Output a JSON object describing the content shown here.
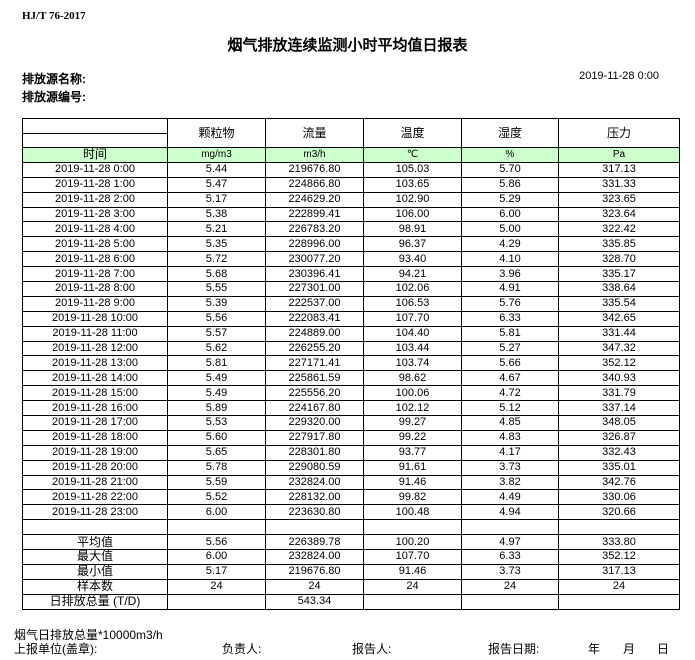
{
  "header": {
    "standard": "HJ/T  76-2017",
    "title": "烟气排放连续监测小时平均值日报表",
    "source_name_label": "排放源名称:",
    "source_no_label": "排放源编号:",
    "report_datetime": "2019-11-28 0:00"
  },
  "table": {
    "columns": [
      "颗粒物",
      "流量",
      "温度",
      "湿度",
      "压力"
    ],
    "time_label": "时间",
    "units": [
      "mg/m3",
      "m3/h",
      "℃",
      "%",
      "Pa"
    ],
    "rows": [
      [
        "2019-11-28 0:00",
        "5.44",
        "219676.80",
        "105.03",
        "5.70",
        "317.13"
      ],
      [
        "2019-11-28 1:00",
        "5.47",
        "224866.80",
        "103.65",
        "5.86",
        "331.33"
      ],
      [
        "2019-11-28 2:00",
        "5.17",
        "224629.20",
        "102.90",
        "5.29",
        "323.65"
      ],
      [
        "2019-11-28 3:00",
        "5.38",
        "222899.41",
        "106.00",
        "6.00",
        "323.64"
      ],
      [
        "2019-11-28 4:00",
        "5.21",
        "226783.20",
        "98.91",
        "5.00",
        "322.42"
      ],
      [
        "2019-11-28 5:00",
        "5.35",
        "228996.00",
        "96.37",
        "4.29",
        "335.85"
      ],
      [
        "2019-11-28 6:00",
        "5.72",
        "230077.20",
        "93.40",
        "4.10",
        "328.70"
      ],
      [
        "2019-11-28 7:00",
        "5.68",
        "230396.41",
        "94.21",
        "3.96",
        "335.17"
      ],
      [
        "2019-11-28 8:00",
        "5.55",
        "227301.00",
        "102.06",
        "4.91",
        "338.64"
      ],
      [
        "2019-11-28 9:00",
        "5.39",
        "222537.00",
        "106.53",
        "5.76",
        "335.54"
      ],
      [
        "2019-11-28 10:00",
        "5.56",
        "222083.41",
        "107.70",
        "6.33",
        "342.65"
      ],
      [
        "2019-11-28 11:00",
        "5.57",
        "224889.00",
        "104.40",
        "5.81",
        "331.44"
      ],
      [
        "2019-11-28 12:00",
        "5.62",
        "226255.20",
        "103.44",
        "5.27",
        "347.32"
      ],
      [
        "2019-11-28 13:00",
        "5.81",
        "227171.41",
        "103.74",
        "5.66",
        "352.12"
      ],
      [
        "2019-11-28 14:00",
        "5.49",
        "225861.59",
        "98.62",
        "4.67",
        "340.93"
      ],
      [
        "2019-11-28 15:00",
        "5.49",
        "225556.20",
        "100.06",
        "4.72",
        "331.79"
      ],
      [
        "2019-11-28 16:00",
        "5.89",
        "224167.80",
        "102.12",
        "5.12",
        "337.14"
      ],
      [
        "2019-11-28 17:00",
        "5.53",
        "229320.00",
        "99.27",
        "4.85",
        "348.05"
      ],
      [
        "2019-11-28 18:00",
        "5.60",
        "227917.80",
        "99.22",
        "4.83",
        "326.87"
      ],
      [
        "2019-11-28 19:00",
        "5.65",
        "228301.80",
        "93.77",
        "4.17",
        "332.43"
      ],
      [
        "2019-11-28 20:00",
        "5.78",
        "229080.59",
        "91.61",
        "3.73",
        "335.01"
      ],
      [
        "2019-11-28 21:00",
        "5.59",
        "232824.00",
        "91.46",
        "3.82",
        "342.76"
      ],
      [
        "2019-11-28 22:00",
        "5.52",
        "228132.00",
        "99.82",
        "4.49",
        "330.06"
      ],
      [
        "2019-11-28 23:00",
        "6.00",
        "223630.80",
        "100.48",
        "4.94",
        "320.66"
      ]
    ],
    "stats": [
      [
        "平均值",
        "5.56",
        "226389.78",
        "100.20",
        "4.97",
        "333.80"
      ],
      [
        "最大值",
        "6.00",
        "232824.00",
        "107.70",
        "6.33",
        "352.12"
      ],
      [
        "最小值",
        "5.17",
        "219676.80",
        "91.46",
        "3.73",
        "317.13"
      ],
      [
        "样本数",
        "24",
        "24",
        "24",
        "24",
        "24"
      ],
      [
        "日排放总量 (T/D)",
        "",
        "543.34",
        "",
        "",
        ""
      ]
    ],
    "units_row_color": "#ccffcc"
  },
  "footer": {
    "note": "烟气日排放总量*10000m3/h",
    "unit_label": "上报单位(盖章):",
    "responsible_label": "负责人:",
    "reporter_label": "报告人:",
    "report_date_label": "报告日期:",
    "year": "年",
    "month": "月",
    "day": "日"
  }
}
